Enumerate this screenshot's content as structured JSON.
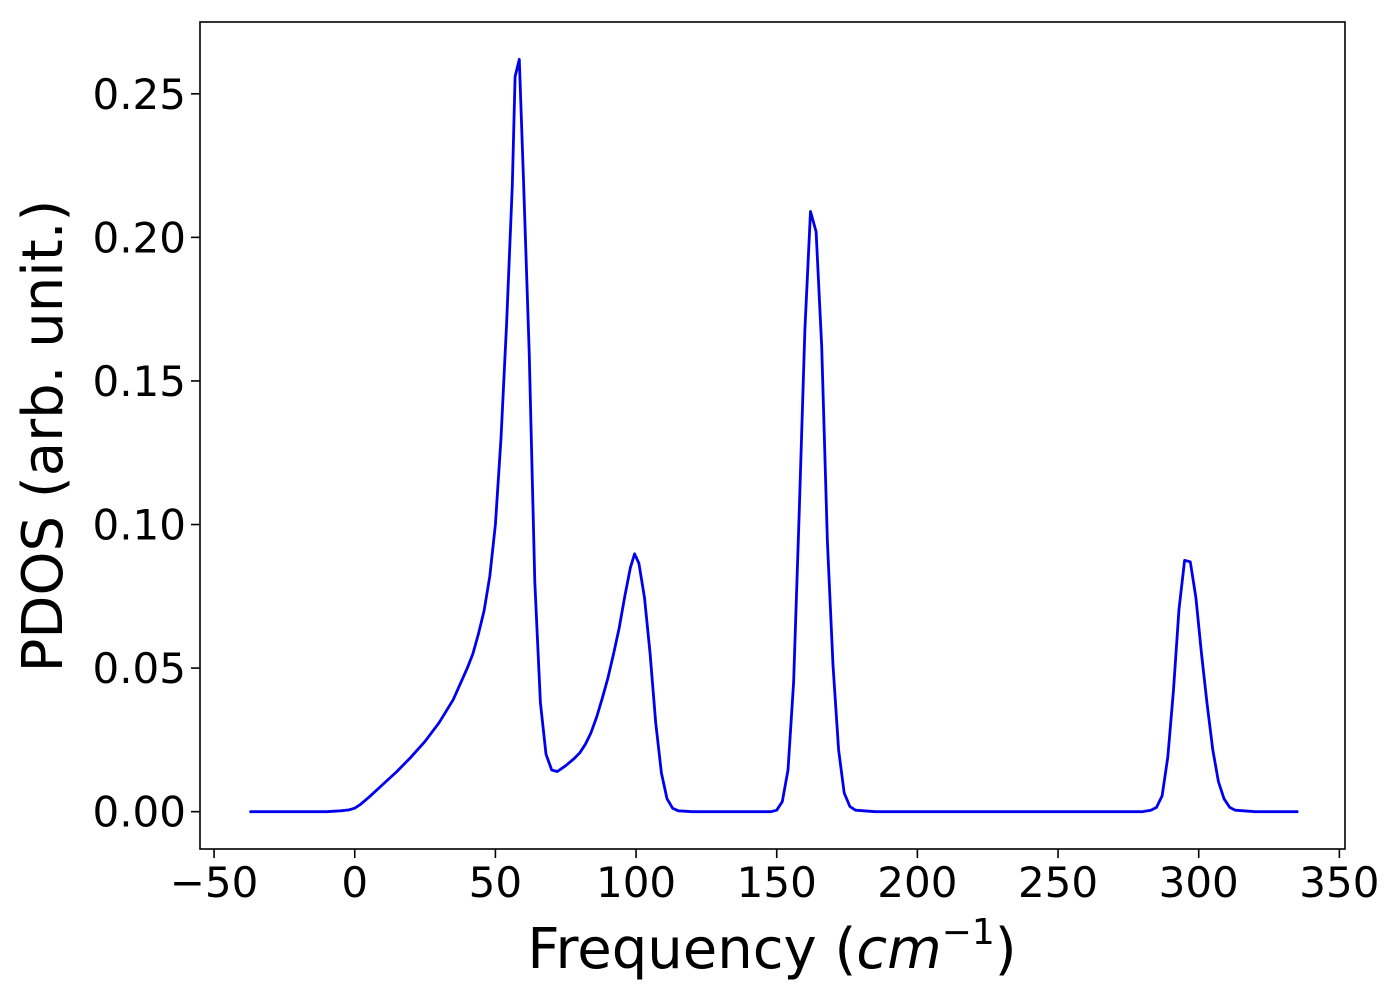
{
  "chart_data": {
    "type": "line",
    "title": "",
    "xlabel": "Frequency (",
    "xlabel_math": "cm",
    "xlabel_sup": "−1",
    "xlabel_close": ")",
    "ylabel": "PDOS (arb. unit.)",
    "xlim": [
      -55,
      352
    ],
    "ylim": [
      -0.013,
      0.275
    ],
    "xticks": [
      -50,
      0,
      50,
      100,
      150,
      200,
      250,
      300,
      350
    ],
    "xtick_labels": [
      "−50",
      "0",
      "50",
      "100",
      "150",
      "200",
      "250",
      "300",
      "350"
    ],
    "yticks": [
      0.0,
      0.05,
      0.1,
      0.15,
      0.2,
      0.25
    ],
    "ytick_labels": [
      "0.00",
      "0.05",
      "0.10",
      "0.15",
      "0.20",
      "0.25"
    ],
    "grid": false,
    "line_color": "#0000ee",
    "series": [
      {
        "x": [
          -37,
          -10,
          -5,
          -2,
          0,
          2,
          5,
          10,
          15,
          20,
          25,
          30,
          35,
          40,
          42,
          44,
          46,
          48,
          50,
          52,
          54,
          56,
          57,
          58.5,
          60,
          62,
          64,
          66,
          68,
          70,
          72,
          75,
          78,
          80,
          82,
          84,
          86,
          88,
          90,
          92,
          94,
          96,
          98,
          99.5,
          101,
          103,
          105,
          107,
          109,
          111,
          113,
          115,
          120,
          130,
          140,
          148,
          150,
          152,
          154,
          156,
          158,
          160,
          162,
          164,
          166,
          168,
          170,
          172,
          174,
          176,
          178,
          185,
          200,
          250,
          280,
          283,
          285,
          287,
          289,
          291,
          293,
          295,
          297,
          299,
          301,
          303,
          305,
          307,
          309,
          311,
          313,
          320,
          335
        ],
        "y": [
          0.0,
          0.0,
          0.0003,
          0.0006,
          0.0012,
          0.0025,
          0.005,
          0.0095,
          0.014,
          0.019,
          0.0245,
          0.031,
          0.039,
          0.05,
          0.055,
          0.062,
          0.07,
          0.082,
          0.1,
          0.13,
          0.17,
          0.218,
          0.256,
          0.262,
          0.22,
          0.16,
          0.08,
          0.038,
          0.02,
          0.0145,
          0.014,
          0.016,
          0.0185,
          0.0205,
          0.0235,
          0.0275,
          0.033,
          0.0395,
          0.0465,
          0.055,
          0.064,
          0.075,
          0.085,
          0.0898,
          0.0865,
          0.0745,
          0.055,
          0.031,
          0.0135,
          0.0045,
          0.0012,
          0.0003,
          0.0,
          0.0,
          0.0,
          0.0,
          0.0005,
          0.0035,
          0.0145,
          0.045,
          0.104,
          0.168,
          0.209,
          0.202,
          0.162,
          0.094,
          0.051,
          0.0215,
          0.0065,
          0.0018,
          0.0005,
          0.0,
          0.0,
          0.0,
          0.0,
          0.0005,
          0.0015,
          0.0055,
          0.019,
          0.042,
          0.0705,
          0.0875,
          0.087,
          0.0745,
          0.055,
          0.0375,
          0.0215,
          0.0105,
          0.0045,
          0.0015,
          0.0005,
          0.0,
          0.0
        ]
      }
    ]
  }
}
